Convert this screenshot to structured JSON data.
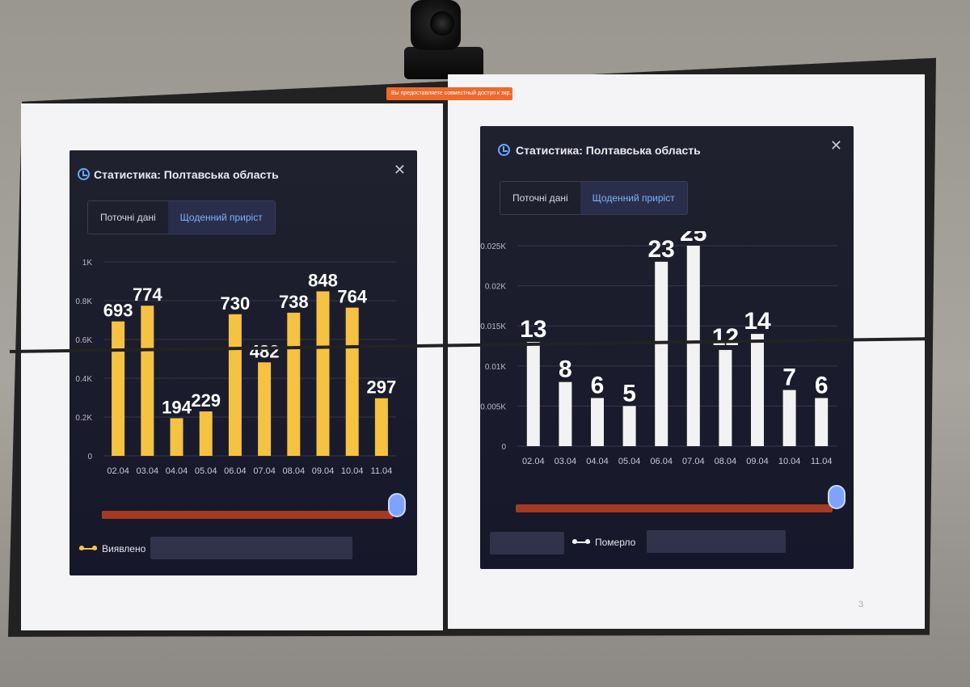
{
  "notice": "Вы предоставляете совместный доступ к экр...",
  "page_number": "3",
  "accent": {
    "yellow": "#f5c242",
    "white": "#f2f2f2",
    "blue": "#6aa8ff"
  },
  "panels": [
    {
      "title": "Статистика: Полтавська область",
      "close_label": "✕",
      "tabs": [
        "Поточні дані",
        "Щоденний приріст"
      ],
      "legend": "Виявлено"
    },
    {
      "title": "Статистика: Полтавська область",
      "close_label": "✕",
      "tabs": [
        "Поточні дані",
        "Щоденний приріст"
      ],
      "legend": "Померло"
    }
  ],
  "chart_data": [
    {
      "type": "bar",
      "categories": [
        "02.04",
        "03.04",
        "04.04",
        "05.04",
        "06.04",
        "07.04",
        "08.04",
        "09.04",
        "10.04",
        "11.04"
      ],
      "series": [
        {
          "name": "Виявлено",
          "values": [
            693,
            774,
            194,
            229,
            730,
            482,
            738,
            848,
            764,
            297
          ]
        }
      ],
      "yticks": [
        "0",
        "0.2K",
        "0.4K",
        "0.6K",
        "0.8K",
        "1K"
      ],
      "ylim": [
        0,
        1000
      ],
      "color": "#f5c242",
      "grid": true
    },
    {
      "type": "bar",
      "categories": [
        "02.04",
        "03.04",
        "04.04",
        "05.04",
        "06.04",
        "07.04",
        "08.04",
        "09.04",
        "10.04",
        "11.04"
      ],
      "series": [
        {
          "name": "Померло",
          "values": [
            13,
            8,
            6,
            5,
            23,
            25,
            12,
            14,
            7,
            6
          ]
        }
      ],
      "yticks": [
        "0",
        "0.005K",
        "0.01K",
        "0.015K",
        "0.02K",
        "0.025K"
      ],
      "ylim": [
        0,
        25
      ],
      "color": "#f2f2f2",
      "grid": true
    }
  ]
}
